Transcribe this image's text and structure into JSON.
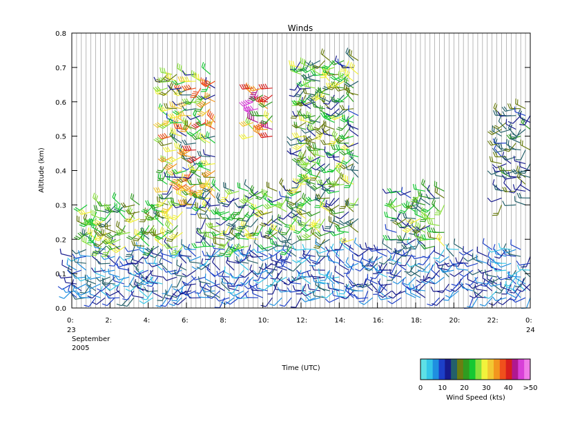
{
  "chart_data": {
    "type": "wind-barb",
    "title": "Winds",
    "ylabel": "Altitude (km)",
    "xlabel": "Time (UTC)",
    "xlim": [
      0,
      24
    ],
    "ylim": [
      0.0,
      0.8
    ],
    "y_ticks": [
      "0.0",
      "0.1",
      "0.2",
      "0.3",
      "0.4",
      "0.5",
      "0.6",
      "0.7",
      "0.8"
    ],
    "x_ticks": [
      "0:",
      "2:",
      "4:",
      "6:",
      "8:",
      "10:",
      "12:",
      "14:",
      "16:",
      "18:",
      "20:",
      "22:",
      "0:"
    ],
    "x_start_day": "23",
    "x_end_day": "24",
    "x_date_month": "September",
    "x_date_year": "2005",
    "grid": "vertical line at each profile time (every 15 min)",
    "profile_interval_hours": 0.25,
    "colorbar": {
      "label": "Wind Speed (kts)",
      "ticks": [
        "0",
        "10",
        "20",
        "30",
        "40",
        ">50"
      ],
      "colors": [
        "#5ee0e6",
        "#35c6e8",
        "#1f8fe0",
        "#1c3fc8",
        "#161a8c",
        "#24606a",
        "#6b7d12",
        "#2f9c20",
        "#14c832",
        "#88e03c",
        "#f2f23c",
        "#f2c832",
        "#f2961e",
        "#f0501c",
        "#d81e1e",
        "#b01890",
        "#d840d8",
        "#f07ce8"
      ]
    },
    "series": [
      {
        "x_range": [
          0,
          24
        ],
        "altitude_range": [
          0.03,
          0.18
        ],
        "speed_kts": "3-15"
      },
      {
        "x_range": [
          0.8,
          6
        ],
        "altitude_range": [
          0.18,
          0.3
        ],
        "speed_kts": "15-30"
      },
      {
        "x_range": [
          5,
          7.5
        ],
        "altitude_range": [
          0.3,
          0.69
        ],
        "speed_kts": "10-40"
      },
      {
        "x_range": [
          7,
          12
        ],
        "altitude_range": [
          0.18,
          0.35
        ],
        "speed_kts": "10-30"
      },
      {
        "x_range": [
          9.5,
          10.5
        ],
        "altitude_range": [
          0.5,
          0.65
        ],
        "speed_kts": "20-50"
      },
      {
        "x_range": [
          12,
          15
        ],
        "altitude_range": [
          0.2,
          0.73
        ],
        "speed_kts": "10-30"
      },
      {
        "x_range": [
          17,
          19.5
        ],
        "altitude_range": [
          0.18,
          0.35
        ],
        "speed_kts": "10-30"
      },
      {
        "x_range": [
          22.5,
          24
        ],
        "altitude_range": [
          0.3,
          0.6
        ],
        "speed_kts": "10-20"
      }
    ]
  }
}
